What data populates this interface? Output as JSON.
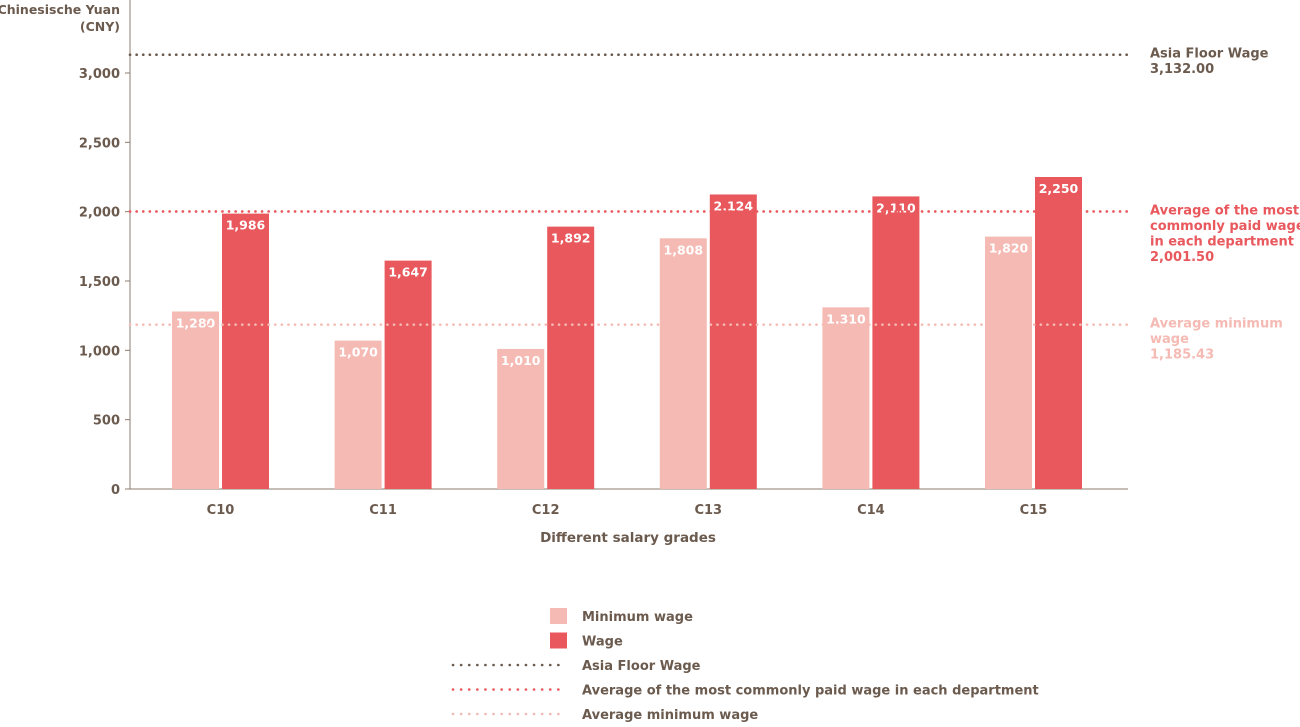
{
  "colors": {
    "minimum": "#f5bab3",
    "wage": "#e8585d",
    "floor": "#6b5a4e",
    "avg_common": "#e8585d",
    "avg_min": "#f5bab3",
    "text": "#6b5a4e",
    "axis": "#8a7b70"
  },
  "chart_data": {
    "type": "bar",
    "ylabel": [
      "Chinesische Yuan",
      "(CNY)"
    ],
    "xlabel": "Different salary grades",
    "categories": [
      "C10",
      "C11",
      "C12",
      "C13",
      "C14",
      "C15"
    ],
    "ylim": [
      0,
      3200
    ],
    "yticks": [
      0,
      500,
      1000,
      1500,
      2000,
      2500,
      3000
    ],
    "ytick_labels": [
      "0",
      "500",
      "1,000",
      "1,500",
      "2,000",
      "2,500",
      "3,000"
    ],
    "series": [
      {
        "name": "Minimum wage",
        "values": [
          1280,
          1070,
          1010,
          1808,
          1310,
          1820
        ],
        "labels": [
          "1,280",
          "1,070",
          "1,010",
          "1,808",
          "1,310",
          "1,820"
        ],
        "color": "#f5bab3"
      },
      {
        "name": "Wage",
        "values": [
          1986,
          1647,
          1892,
          2124,
          2110,
          2250
        ],
        "labels": [
          "1,986",
          "1,647",
          "1,892",
          "2,124",
          "2,110",
          "2,250"
        ],
        "color": "#e8585d"
      }
    ],
    "reference_lines": [
      {
        "name": "Asia Floor Wage",
        "value": 3132.0,
        "label_lines": [
          "Asia Floor Wage",
          "3,132.00"
        ],
        "color": "#6b5a4e"
      },
      {
        "name": "Average of the most commonly paid wage in each department",
        "value": 2001.5,
        "label_lines": [
          "Average of the most",
          "commonly paid wage",
          "in each department",
          "2,001.50"
        ],
        "color": "#e8585d"
      },
      {
        "name": "Average minimum wage",
        "value": 1185.43,
        "label_lines": [
          "Average minimum",
          "wage",
          "1,185.43"
        ],
        "color": "#f5bab3"
      }
    ],
    "grid": false,
    "legend_position": "bottom-center",
    "legend": [
      {
        "label": "Minimum wage",
        "kind": "box",
        "color": "#f5bab3"
      },
      {
        "label": "Wage",
        "kind": "box",
        "color": "#e8585d"
      },
      {
        "label": "Asia Floor Wage",
        "kind": "dots",
        "color": "#6b5a4e"
      },
      {
        "label": "Average of the most commonly paid wage in each department",
        "kind": "dots",
        "color": "#e8585d"
      },
      {
        "label": "Average minimum wage",
        "kind": "dots",
        "color": "#f5bab3"
      }
    ]
  }
}
